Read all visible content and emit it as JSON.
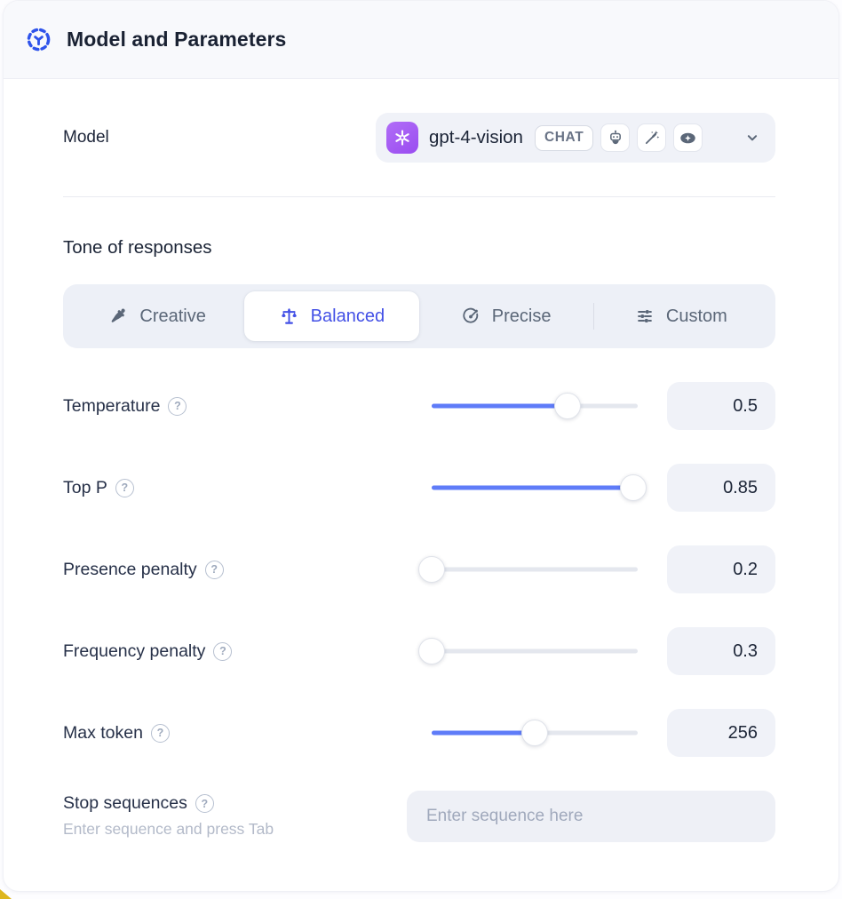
{
  "header": {
    "title": "Model and Parameters"
  },
  "model_row": {
    "label": "Model",
    "model_name": "gpt-4-vision",
    "type_badge": "CHAT",
    "capability_icons": [
      "robot-icon",
      "magic-wand-icon",
      "vision-eye-icon"
    ],
    "provider_icon": "openai-logo"
  },
  "tone": {
    "heading": "Tone of responses",
    "options": [
      {
        "label": "Creative",
        "icon": "paintbrush-icon",
        "active": false
      },
      {
        "label": "Balanced",
        "icon": "balance-scale-icon",
        "active": true
      },
      {
        "label": "Precise",
        "icon": "target-icon",
        "active": false
      },
      {
        "label": "Custom",
        "icon": "sliders-icon",
        "active": false
      }
    ]
  },
  "parameters": [
    {
      "label": "Temperature",
      "value": "0.5",
      "fill_percent": 66
    },
    {
      "label": "Top P",
      "value": "0.85",
      "fill_percent": 98
    },
    {
      "label": "Presence penalty",
      "value": "0.2",
      "fill_percent": 0
    },
    {
      "label": "Frequency penalty",
      "value": "0.3",
      "fill_percent": 0
    },
    {
      "label": "Max token",
      "value": "256",
      "fill_percent": 50
    }
  ],
  "stop_sequences": {
    "label": "Stop sequences",
    "hint": "Enter sequence and press Tab",
    "placeholder": "Enter sequence here"
  },
  "colors": {
    "accent_indigo": "#4350e6",
    "slider_blue": "#5f7cf8",
    "provider_purple": "#a259f2",
    "header_bg": "#f8f9fc",
    "field_bg": "#f0f2f8",
    "corner_accent_yellow": "#ddb61e"
  }
}
